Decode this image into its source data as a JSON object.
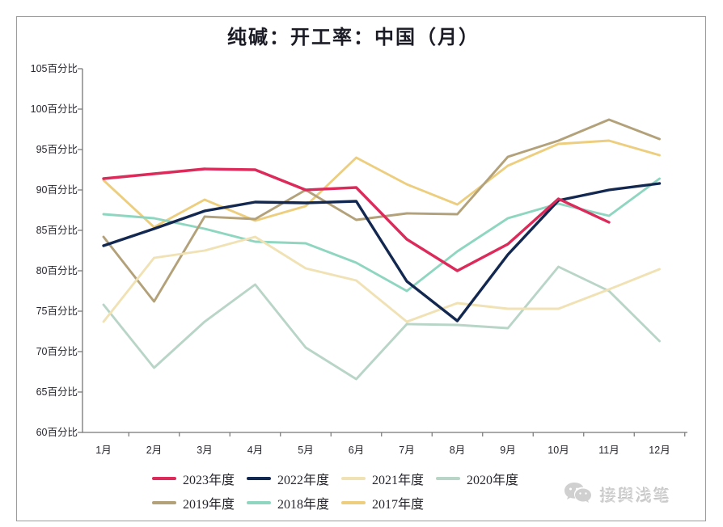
{
  "title": "纯碱：开工率：中国（月）",
  "y_axis": {
    "labels": [
      "105百分比",
      "100百分比",
      "95百分比",
      "90百分比",
      "85百分比",
      "80百分比",
      "75百分比",
      "70百分比",
      "65百分比",
      "60百分比"
    ],
    "values": [
      105,
      100,
      95,
      90,
      85,
      80,
      75,
      70,
      65,
      60
    ]
  },
  "watermark": {
    "icon": "wechat-icon",
    "label": "接舆浅笔"
  },
  "chart_data": {
    "type": "line",
    "title": "纯碱：开工率：中国（月）",
    "unit": "百分比",
    "categories": [
      "1月",
      "2月",
      "3月",
      "4月",
      "5月",
      "6月",
      "7月",
      "8月",
      "9月",
      "10月",
      "11月",
      "12月"
    ],
    "ylim": [
      60,
      105
    ],
    "grid": false,
    "legend_position": "bottom",
    "series": [
      {
        "name": "2023年度",
        "color": "#dc2a5a",
        "width": 3.4,
        "values": [
          91.4,
          92.0,
          92.6,
          92.5,
          90.0,
          90.3,
          83.9,
          80.0,
          83.3,
          88.9,
          86.0,
          null
        ]
      },
      {
        "name": "2022年度",
        "color": "#132850",
        "width": 3.4,
        "values": [
          83.1,
          85.2,
          87.4,
          88.5,
          88.4,
          88.6,
          78.7,
          73.8,
          82.0,
          88.7,
          90.0,
          90.8
        ]
      },
      {
        "name": "2021年度",
        "color": "#f0e2b4",
        "width": 2.9,
        "values": [
          73.7,
          81.6,
          82.5,
          84.2,
          80.3,
          78.8,
          73.7,
          76.0,
          75.3,
          75.3,
          77.7,
          80.2
        ]
      },
      {
        "name": "2020年度",
        "color": "#b8d5c7",
        "width": 2.9,
        "values": [
          75.8,
          68.0,
          73.7,
          78.3,
          70.5,
          66.6,
          73.4,
          73.3,
          72.9,
          80.5,
          77.5,
          71.3
        ]
      },
      {
        "name": "2019年度",
        "color": "#b3a17a",
        "width": 2.9,
        "values": [
          84.2,
          76.2,
          86.7,
          86.4,
          90.0,
          86.3,
          87.1,
          87.0,
          94.1,
          96.1,
          98.7,
          96.3
        ]
      },
      {
        "name": "2018年度",
        "color": "#8ed6c0",
        "width": 2.9,
        "values": [
          87.0,
          86.5,
          85.2,
          83.6,
          83.4,
          81.0,
          77.5,
          82.4,
          86.5,
          88.3,
          86.8,
          91.4
        ]
      },
      {
        "name": "2017年度",
        "color": "#ecce7e",
        "width": 2.9,
        "values": [
          91.2,
          85.4,
          88.8,
          86.2,
          88.0,
          94.0,
          90.7,
          88.2,
          93.0,
          95.7,
          96.1,
          94.3
        ]
      }
    ]
  }
}
